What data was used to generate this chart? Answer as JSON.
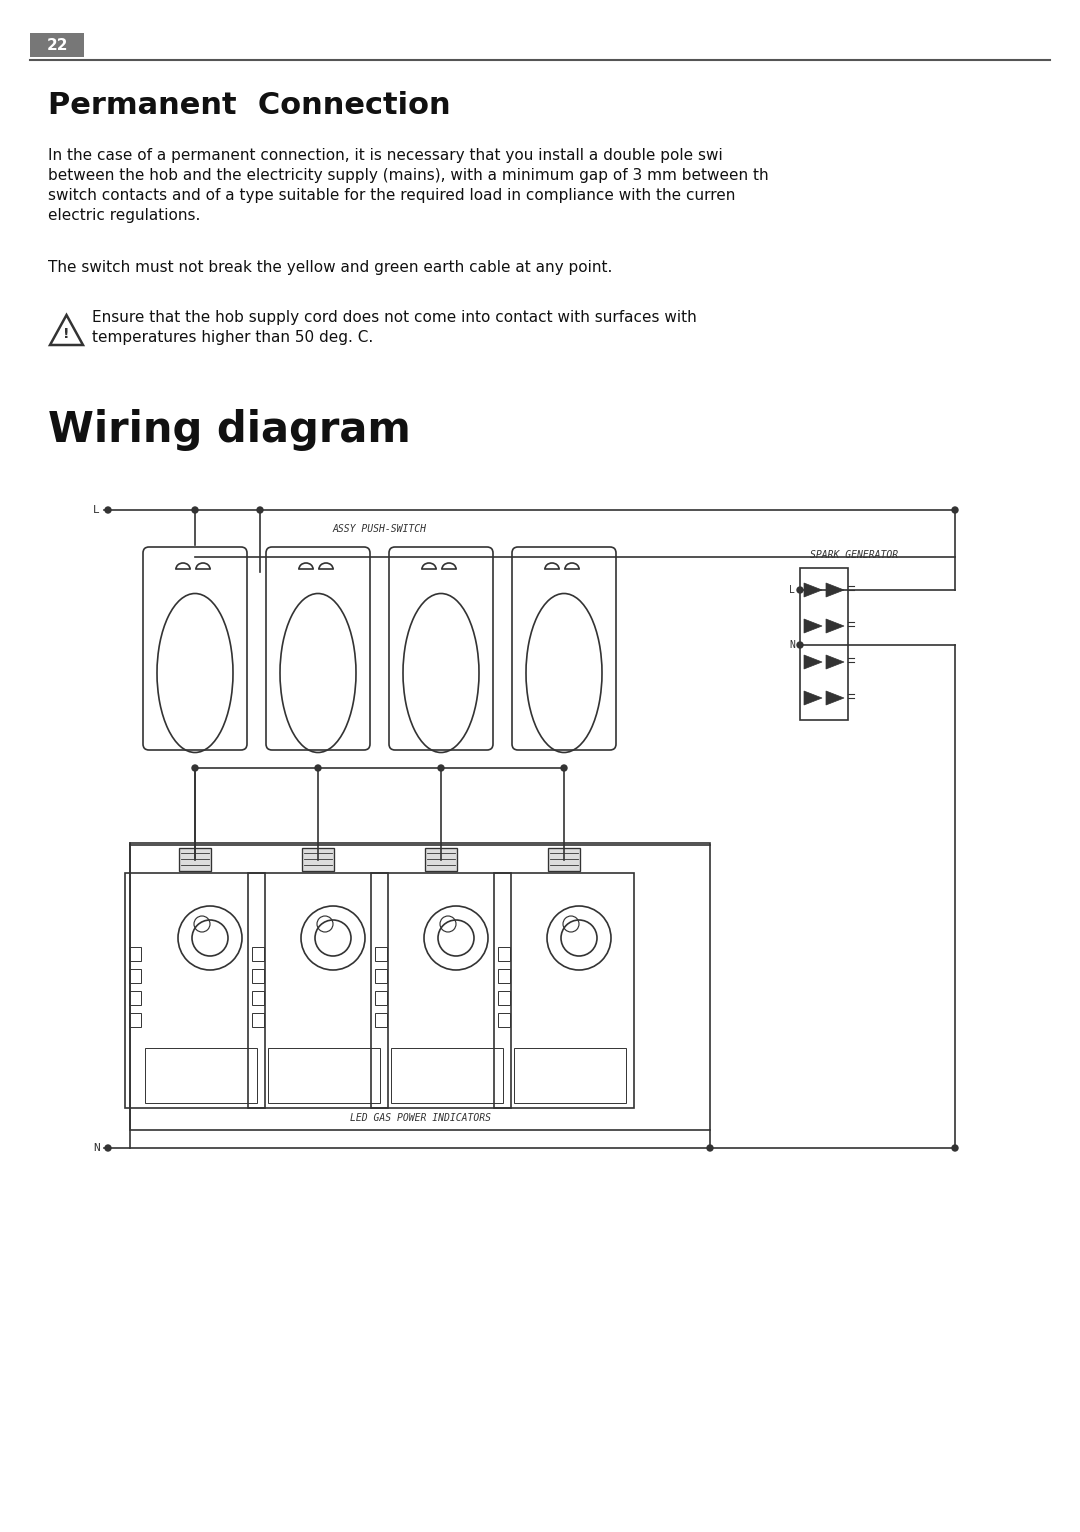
{
  "page_number": "22",
  "title1": "Permanent  Connection",
  "body1_lines": [
    "In the case of a permanent connection, it is necessary that you install a double pole swi",
    "between the hob and the electricity supply (mains), with a minimum gap of 3 mm between th",
    "switch contacts and of a type suitable for the required load in compliance with the curren",
    "electric regulations."
  ],
  "body2": "The switch must not break the yellow and green earth cable at any point.",
  "warn1": "Ensure that the hob supply cord does not come into contact with surfaces with",
  "warn2": "temperatures higher than 50 deg. C.",
  "title2": "Wiring diagram",
  "label_assy": "ASSY PUSH-SWITCH",
  "label_spark": "SPARK GENERATOR",
  "label_led": "LED GAS POWER INDICATORS",
  "bg": "#ffffff",
  "fg": "#111111",
  "dg": "#333333"
}
